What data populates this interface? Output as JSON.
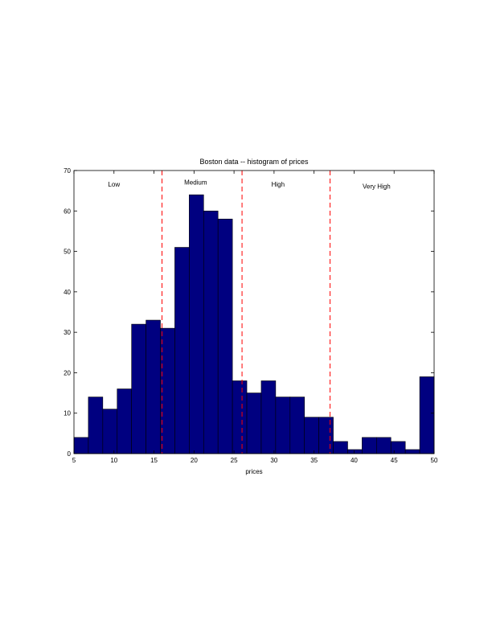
{
  "chart_data": {
    "type": "bar",
    "title": "Boston data -- histogram of prices",
    "xlabel": "prices",
    "ylabel": "",
    "xlim": [
      5,
      50
    ],
    "ylim": [
      0,
      70
    ],
    "xticks": [
      5,
      10,
      15,
      20,
      25,
      30,
      35,
      40,
      45,
      50
    ],
    "yticks": [
      0,
      10,
      20,
      30,
      40,
      50,
      60,
      70
    ],
    "grid": false,
    "bar_color": "#000080",
    "bar_edge_color": "#000000",
    "divider_color": "#ff0000",
    "bins": [
      {
        "start": 5.0,
        "end": 6.8,
        "count": 4
      },
      {
        "start": 6.8,
        "end": 8.6,
        "count": 14
      },
      {
        "start": 8.6,
        "end": 10.4,
        "count": 11
      },
      {
        "start": 10.4,
        "end": 12.2,
        "count": 16
      },
      {
        "start": 12.2,
        "end": 14.0,
        "count": 32
      },
      {
        "start": 14.0,
        "end": 15.8,
        "count": 33
      },
      {
        "start": 15.8,
        "end": 17.6,
        "count": 31
      },
      {
        "start": 17.6,
        "end": 19.4,
        "count": 51
      },
      {
        "start": 19.4,
        "end": 21.2,
        "count": 64
      },
      {
        "start": 21.2,
        "end": 23.0,
        "count": 60
      },
      {
        "start": 23.0,
        "end": 24.8,
        "count": 58
      },
      {
        "start": 24.8,
        "end": 26.6,
        "count": 18
      },
      {
        "start": 26.6,
        "end": 28.4,
        "count": 15
      },
      {
        "start": 28.4,
        "end": 30.2,
        "count": 18
      },
      {
        "start": 30.2,
        "end": 32.0,
        "count": 14
      },
      {
        "start": 32.0,
        "end": 33.8,
        "count": 14
      },
      {
        "start": 33.8,
        "end": 35.6,
        "count": 9
      },
      {
        "start": 35.6,
        "end": 37.4,
        "count": 9
      },
      {
        "start": 37.4,
        "end": 39.2,
        "count": 3
      },
      {
        "start": 39.2,
        "end": 41.0,
        "count": 1
      },
      {
        "start": 41.0,
        "end": 42.8,
        "count": 4
      },
      {
        "start": 42.8,
        "end": 44.6,
        "count": 4
      },
      {
        "start": 44.6,
        "end": 46.4,
        "count": 3
      },
      {
        "start": 46.4,
        "end": 48.2,
        "count": 1
      },
      {
        "start": 48.2,
        "end": 50.0,
        "count": 19
      }
    ],
    "dividers": [
      16,
      26,
      37
    ],
    "regions": [
      {
        "label": "Low",
        "x": 10,
        "y": 66
      },
      {
        "label": "Medium",
        "x": 20.2,
        "y": 66.5
      },
      {
        "label": "High",
        "x": 30.5,
        "y": 66
      },
      {
        "label": "Very High",
        "x": 42.8,
        "y": 65.5
      }
    ]
  }
}
